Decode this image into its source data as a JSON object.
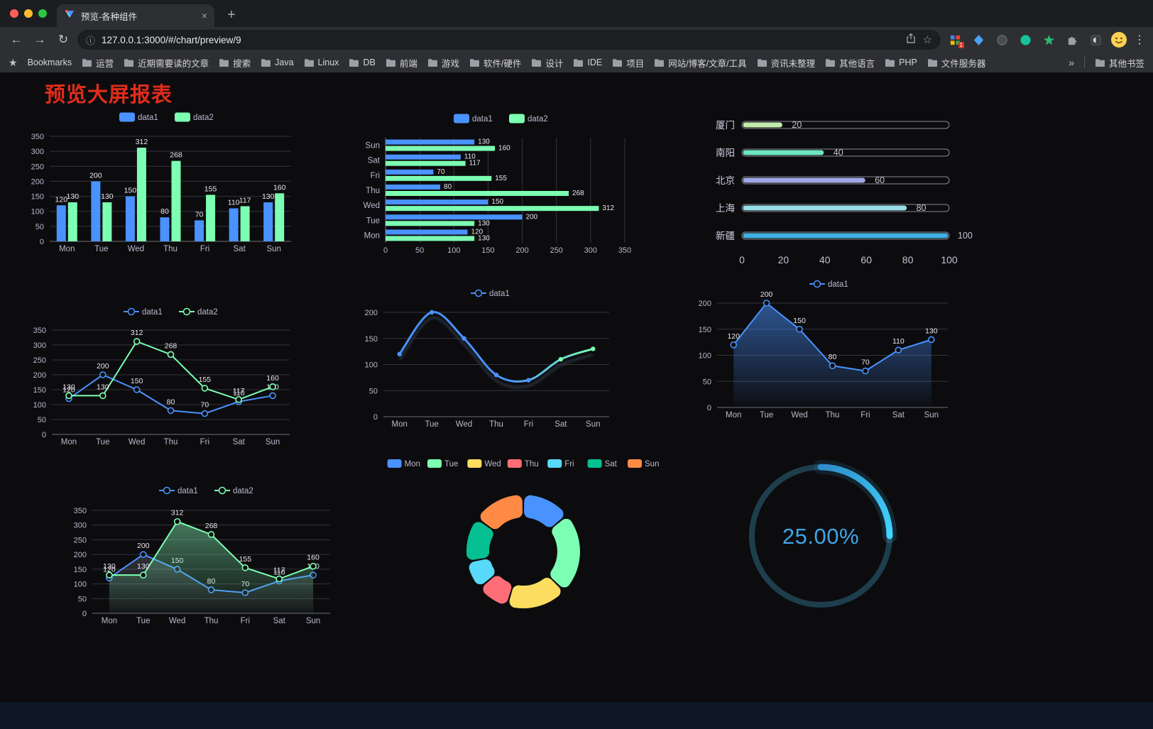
{
  "browser": {
    "window_controls": [
      "close",
      "minimize",
      "zoom"
    ],
    "tab_title": "预览-各种组件",
    "new_tab_label": "+",
    "nav": {
      "back": "←",
      "forward": "→",
      "reload": "↻"
    },
    "omnibox": {
      "info": "ⓘ",
      "url": "127.0.0.1:3000/#/chart/preview/9",
      "bookmark_star": "☆"
    },
    "extension_badge": "1",
    "menu_icon": "⋮",
    "bookmarks": {
      "label": "Bookmarks",
      "folders": [
        "运营",
        "近期需要读的文章",
        "搜索",
        "Java",
        "Linux",
        "DB",
        "前端",
        "游戏",
        "软件/硬件",
        "设计",
        "IDE",
        "项目",
        "网站/博客/文章/工具",
        "资讯未整理",
        "其他语言",
        "PHP",
        "文件服务器"
      ],
      "overflow": "»",
      "other": "其他书签"
    }
  },
  "page": {
    "title": "预览大屏报表",
    "title_color": "#e12c1c"
  },
  "chart_data": [
    {
      "id": "grouped-bar",
      "type": "bar",
      "categories": [
        "Mon",
        "Tue",
        "Wed",
        "Thu",
        "Fri",
        "Sat",
        "Sun"
      ],
      "series": [
        {
          "name": "data1",
          "color": "#4992ff",
          "values": [
            120,
            200,
            150,
            80,
            70,
            110,
            130
          ]
        },
        {
          "name": "data2",
          "color": "#7cffb2",
          "values": [
            130,
            130,
            312,
            268,
            155,
            117,
            160
          ]
        }
      ],
      "ylim": [
        0,
        350
      ],
      "ystep": 50,
      "grid": true,
      "legend_position": "top"
    },
    {
      "id": "horizontal-bar",
      "type": "hbar",
      "categories": [
        "Mon",
        "Tue",
        "Wed",
        "Thu",
        "Fri",
        "Sat",
        "Sun"
      ],
      "series": [
        {
          "name": "data1",
          "color": "#4992ff",
          "values": [
            120,
            200,
            150,
            80,
            70,
            110,
            130
          ]
        },
        {
          "name": "data2",
          "color": "#7cffb2",
          "values": [
            130,
            130,
            312,
            268,
            155,
            117,
            160
          ]
        }
      ],
      "xlim": [
        0,
        350
      ],
      "xstep": 50,
      "legend_position": "top"
    },
    {
      "id": "progress-rank",
      "type": "progress",
      "max": 100,
      "xticks": [
        0,
        20,
        40,
        60,
        80,
        100
      ],
      "items": [
        {
          "label": "厦门",
          "value": 20,
          "color": "#c4ebad"
        },
        {
          "label": "南阳",
          "value": 40,
          "color": "#6be6c1"
        },
        {
          "label": "北京",
          "value": 60,
          "color": "#a0a7e6"
        },
        {
          "label": "上海",
          "value": 80,
          "color": "#96dee8"
        },
        {
          "label": "新疆",
          "value": 100,
          "color": "#3fb1e3"
        }
      ]
    },
    {
      "id": "two-line",
      "type": "line",
      "categories": [
        "Mon",
        "Tue",
        "Wed",
        "Thu",
        "Fri",
        "Sat",
        "Sun"
      ],
      "series": [
        {
          "name": "data1",
          "color": "#4992ff",
          "values": [
            120,
            200,
            150,
            80,
            70,
            110,
            130
          ],
          "labels": true,
          "markers": true
        },
        {
          "name": "data2",
          "color": "#7cffb2",
          "values": [
            130,
            130,
            312,
            268,
            155,
            117,
            160
          ],
          "labels": true,
          "markers": true
        }
      ],
      "ylim": [
        0,
        350
      ],
      "ystep": 50
    },
    {
      "id": "gradient-line",
      "type": "line",
      "categories": [
        "Mon",
        "Tue",
        "Wed",
        "Thu",
        "Fri",
        "Sat",
        "Sun"
      ],
      "series": [
        {
          "name": "data1",
          "color": "#4992ff",
          "gradient": [
            "#4992ff",
            "#7cffb2"
          ],
          "values": [
            120,
            200,
            150,
            80,
            70,
            110,
            130
          ],
          "smooth": true,
          "shadow": true,
          "markers": true
        }
      ],
      "ylim": [
        0,
        200
      ],
      "ystep": 50
    },
    {
      "id": "area-line",
      "type": "line",
      "categories": [
        "Mon",
        "Tue",
        "Wed",
        "Thu",
        "Fri",
        "Sat",
        "Sun"
      ],
      "series": [
        {
          "name": "data1",
          "color": "#4992ff",
          "values": [
            120,
            200,
            150,
            80,
            70,
            110,
            130
          ],
          "labels": true,
          "markers": true,
          "area": [
            "rgba(73,146,255,0.55)",
            "rgba(73,146,255,0.02)"
          ]
        }
      ],
      "ylim": [
        0,
        200
      ],
      "ystep": 50
    },
    {
      "id": "two-line-area",
      "type": "line",
      "categories": [
        "Mon",
        "Tue",
        "Wed",
        "Thu",
        "Fri",
        "Sat",
        "Sun"
      ],
      "series": [
        {
          "name": "data1",
          "color": "#4992ff",
          "values": [
            120,
            200,
            150,
            80,
            70,
            110,
            130
          ],
          "labels": true,
          "markers": true,
          "area": [
            "rgba(190,205,225,0.20)",
            "rgba(190,205,225,0.02)"
          ]
        },
        {
          "name": "data2",
          "color": "#7cffb2",
          "values": [
            130,
            130,
            312,
            268,
            155,
            117,
            160
          ],
          "labels": true,
          "markers": true,
          "area": [
            "rgba(124,230,170,0.50)",
            "rgba(124,230,170,0.03)"
          ]
        }
      ],
      "ylim": [
        0,
        350
      ],
      "ystep": 50
    },
    {
      "id": "weekday-donut",
      "type": "pie",
      "items": [
        {
          "name": "Mon",
          "value": 120,
          "color": "#4992ff"
        },
        {
          "name": "Tue",
          "value": 200,
          "color": "#7cffb2"
        },
        {
          "name": "Wed",
          "value": 150,
          "color": "#fddd60"
        },
        {
          "name": "Thu",
          "value": 80,
          "color": "#ff6e76"
        },
        {
          "name": "Fri",
          "value": 70,
          "color": "#58d9f9"
        },
        {
          "name": "Sat",
          "value": 110,
          "color": "#05c091"
        },
        {
          "name": "Sun",
          "value": 130,
          "color": "#ff8a45"
        }
      ]
    },
    {
      "id": "percent-gauge",
      "type": "gauge",
      "value": 25,
      "max": 100,
      "label": "25.00%",
      "ring_color": "#1e3e4d",
      "arc_colors": [
        "#2e8cc9",
        "#41d6ff"
      ],
      "text_color": "#3fa6e8"
    }
  ]
}
